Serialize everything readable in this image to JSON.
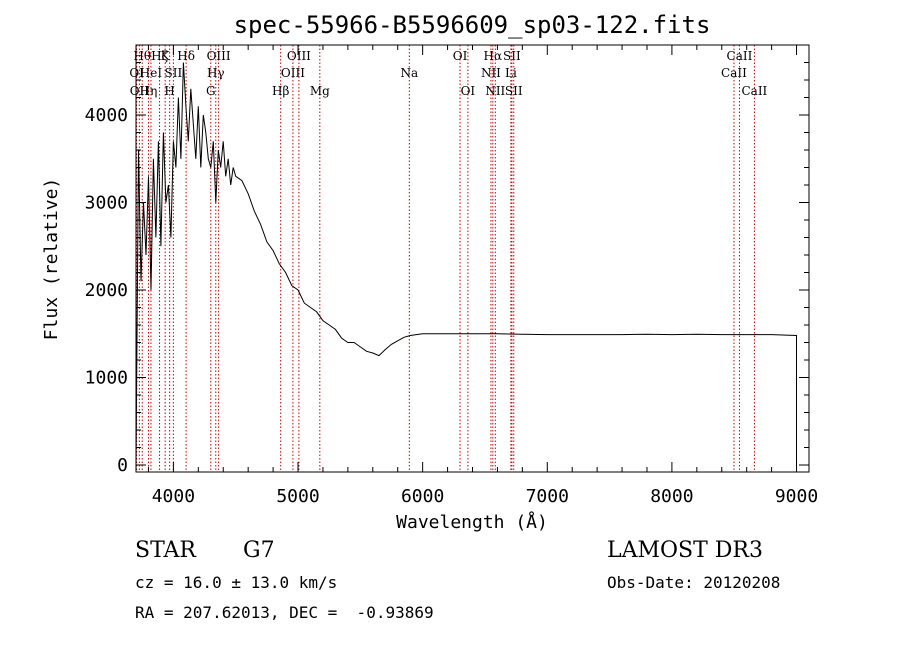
{
  "chart_data": {
    "type": "line",
    "title": "spec-55966-B5596609_sp03-122.fits",
    "xlabel": "Wavelength (Å)",
    "ylabel": "Flux (relative)",
    "xlim": [
      3700,
      9100
    ],
    "ylim": [
      -80,
      4800
    ],
    "x_ticks": [
      4000,
      5000,
      6000,
      7000,
      8000,
      9000
    ],
    "y_ticks": [
      0,
      1000,
      2000,
      3000,
      4000
    ],
    "line_color": "#000000",
    "marker_color": "#cc0000",
    "series": [
      {
        "x": [
          3700,
          3720,
          3740,
          3760,
          3780,
          3800,
          3820,
          3840,
          3860,
          3880,
          3900,
          3920,
          3940,
          3960,
          3980,
          4000,
          4020,
          4040,
          4060,
          4080,
          4100,
          4120,
          4140,
          4160,
          4180,
          4200,
          4220,
          4240,
          4260,
          4280,
          4300,
          4320,
          4340,
          4360,
          4380,
          4400,
          4420,
          4440,
          4460,
          4480,
          4500,
          4550,
          4600,
          4650,
          4700,
          4750,
          4800,
          4850,
          4900,
          4950,
          5000,
          5050,
          5100,
          5150,
          5200,
          5250,
          5300,
          5350,
          5400,
          5450,
          5500,
          5550,
          5600,
          5650,
          5700,
          5750,
          5800,
          5850,
          5900,
          5950,
          6000,
          6200,
          6400,
          6600,
          6800,
          7000,
          7200,
          7400,
          7600,
          7800,
          8000,
          8200,
          8400,
          8600,
          8800,
          9000,
          9000
        ],
        "y": [
          0,
          3600,
          2100,
          3000,
          2400,
          3300,
          2000,
          3500,
          2600,
          3700,
          2500,
          3800,
          3000,
          3200,
          2600,
          3700,
          3400,
          4200,
          3500,
          4600,
          4100,
          3700,
          4300,
          3900,
          3500,
          4100,
          3400,
          4000,
          3800,
          3500,
          3400,
          3700,
          3000,
          3600,
          3400,
          3700,
          3300,
          3500,
          3200,
          3400,
          3300,
          3250,
          3100,
          2900,
          2750,
          2550,
          2450,
          2300,
          2200,
          2050,
          2000,
          1850,
          1800,
          1750,
          1650,
          1600,
          1550,
          1450,
          1400,
          1400,
          1350,
          1300,
          1280,
          1250,
          1320,
          1380,
          1420,
          1460,
          1480,
          1490,
          1500,
          1500,
          1500,
          1500,
          1495,
          1490,
          1490,
          1490,
          1490,
          1495,
          1490,
          1495,
          1490,
          1490,
          1490,
          1480,
          0
        ]
      }
    ],
    "lines": [
      {
        "x": 3705,
        "label": "OI",
        "row": 2
      },
      {
        "x": 3727,
        "label": "OII",
        "row": 3
      },
      {
        "x": 3750,
        "label": "Hθ",
        "row": 1
      },
      {
        "x": 3800,
        "label": "Hη",
        "row": 3
      },
      {
        "x": 3820,
        "label": "HeI",
        "row": 2
      },
      {
        "x": 3889,
        "label": "Hζ",
        "row": 1
      },
      {
        "x": 3934,
        "label": "K",
        "row": 1
      },
      {
        "x": 3970,
        "label": "H",
        "row": 3
      },
      {
        "x": 4000,
        "label": "SII",
        "row": 2
      },
      {
        "x": 4102,
        "label": "Hδ",
        "row": 1
      },
      {
        "x": 4300,
        "label": "G",
        "row": 3
      },
      {
        "x": 4340,
        "label": "Hγ",
        "row": 2
      },
      {
        "x": 4363,
        "label": "OIII",
        "row": 1
      },
      {
        "x": 4861,
        "label": "Hβ",
        "row": 3
      },
      {
        "x": 4959,
        "label": "OIII",
        "row": 2
      },
      {
        "x": 5007,
        "label": "OIII",
        "row": 1
      },
      {
        "x": 5175,
        "label": "Mg",
        "row": 3
      },
      {
        "x": 5893,
        "label": "Na",
        "row": 2
      },
      {
        "x": 6300,
        "label": "OI",
        "row": 1
      },
      {
        "x": 6363,
        "label": "OI",
        "row": 3
      },
      {
        "x": 6548,
        "label": "NII",
        "row": 2
      },
      {
        "x": 6563,
        "label": "Hα",
        "row": 1
      },
      {
        "x": 6583,
        "label": "NII",
        "row": 3
      },
      {
        "x": 6708,
        "label": "Li",
        "row": 2
      },
      {
        "x": 6716,
        "label": "SII",
        "row": 1
      },
      {
        "x": 6731,
        "label": "SII",
        "row": 3
      },
      {
        "x": 8498,
        "label": "CaII",
        "row": 2
      },
      {
        "x": 8542,
        "label": "CaII",
        "row": 1
      },
      {
        "x": 8662,
        "label": "CaII",
        "row": 3
      }
    ]
  },
  "info": {
    "class_label": "STAR",
    "subclass": "G7",
    "cz": "cz = 16.0 ± 13.0 km/s",
    "coords": "RA = 207.62013, DEC =  -0.93869",
    "survey": "LAMOST DR3",
    "obs_date": "Obs-Date: 20120208"
  }
}
